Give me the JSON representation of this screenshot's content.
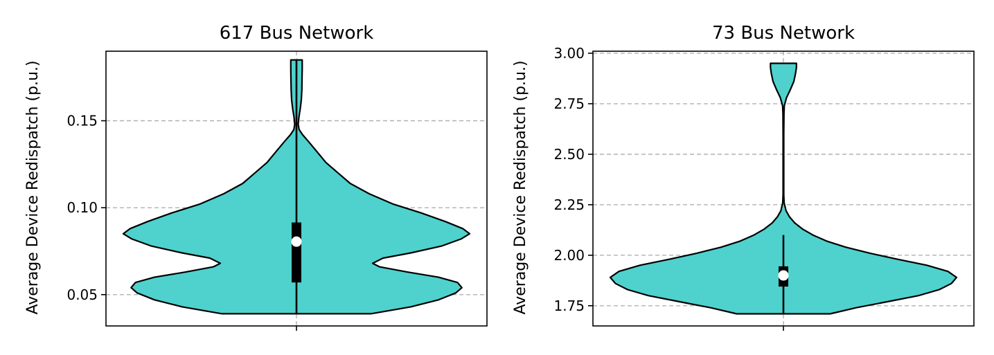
{
  "chart_data": [
    {
      "type": "violin",
      "title": "617 Bus Network",
      "xlabel": "",
      "ylabel": "Average Device Redispatch (p.u.)",
      "ylim": [
        0.032,
        0.19
      ],
      "yticks": [
        0.05,
        0.1,
        0.15
      ],
      "ytick_labels": [
        "0.05",
        "0.10",
        "0.15"
      ],
      "grid": true,
      "fill_color": "#4fd1cd",
      "edge_color": "#000000",
      "data_min": 0.039,
      "data_max": 0.185,
      "q1": 0.057,
      "median": 0.0805,
      "q3": 0.0915,
      "density_profile": [
        [
          0.039,
          0.43
        ],
        [
          0.043,
          0.66
        ],
        [
          0.047,
          0.82
        ],
        [
          0.051,
          0.92
        ],
        [
          0.054,
          0.955
        ],
        [
          0.057,
          0.93
        ],
        [
          0.06,
          0.82
        ],
        [
          0.063,
          0.64
        ],
        [
          0.066,
          0.48
        ],
        [
          0.068,
          0.44
        ],
        [
          0.071,
          0.5
        ],
        [
          0.074,
          0.66
        ],
        [
          0.078,
          0.84
        ],
        [
          0.082,
          0.95
        ],
        [
          0.085,
          1.0
        ],
        [
          0.088,
          0.96
        ],
        [
          0.092,
          0.86
        ],
        [
          0.097,
          0.72
        ],
        [
          0.102,
          0.56
        ],
        [
          0.108,
          0.42
        ],
        [
          0.114,
          0.31
        ],
        [
          0.12,
          0.24
        ],
        [
          0.126,
          0.17
        ],
        [
          0.132,
          0.12
        ],
        [
          0.138,
          0.07
        ],
        [
          0.142,
          0.035
        ],
        [
          0.145,
          0.015
        ],
        [
          0.148,
          0.01
        ],
        [
          0.152,
          0.014
        ],
        [
          0.157,
          0.022
        ],
        [
          0.162,
          0.028
        ],
        [
          0.168,
          0.031
        ],
        [
          0.174,
          0.032
        ],
        [
          0.18,
          0.033
        ],
        [
          0.185,
          0.033
        ]
      ]
    },
    {
      "type": "violin",
      "title": "73 Bus Network",
      "xlabel": "",
      "ylabel": "Average Device Redispatch (p.u.)",
      "ylim": [
        1.65,
        3.01
      ],
      "yticks": [
        1.75,
        2.0,
        2.25,
        2.5,
        2.75,
        3.0
      ],
      "ytick_labels": [
        "1.75",
        "2.00",
        "2.25",
        "2.50",
        "2.75",
        "3.00"
      ],
      "grid": true,
      "fill_color": "#4fd1cd",
      "edge_color": "#000000",
      "data_min": 1.71,
      "data_max": 2.95,
      "q1": 1.845,
      "median": 1.9,
      "q3": 1.945,
      "whisker_high": 2.1,
      "density_profile": [
        [
          1.71,
          0.27
        ],
        [
          1.74,
          0.42
        ],
        [
          1.77,
          0.6
        ],
        [
          1.8,
          0.78
        ],
        [
          1.83,
          0.9
        ],
        [
          1.86,
          0.97
        ],
        [
          1.89,
          1.0
        ],
        [
          1.92,
          0.95
        ],
        [
          1.95,
          0.83
        ],
        [
          1.98,
          0.66
        ],
        [
          2.01,
          0.5
        ],
        [
          2.04,
          0.36
        ],
        [
          2.07,
          0.25
        ],
        [
          2.1,
          0.17
        ],
        [
          2.13,
          0.11
        ],
        [
          2.16,
          0.065
        ],
        [
          2.19,
          0.035
        ],
        [
          2.22,
          0.015
        ],
        [
          2.26,
          0.004
        ],
        [
          2.3,
          0.002
        ],
        [
          2.4,
          0.002
        ],
        [
          2.5,
          0.002
        ],
        [
          2.6,
          0.002
        ],
        [
          2.7,
          0.003
        ],
        [
          2.74,
          0.005
        ],
        [
          2.78,
          0.018
        ],
        [
          2.82,
          0.04
        ],
        [
          2.86,
          0.06
        ],
        [
          2.9,
          0.07
        ],
        [
          2.93,
          0.075
        ],
        [
          2.95,
          0.075
        ]
      ]
    }
  ]
}
